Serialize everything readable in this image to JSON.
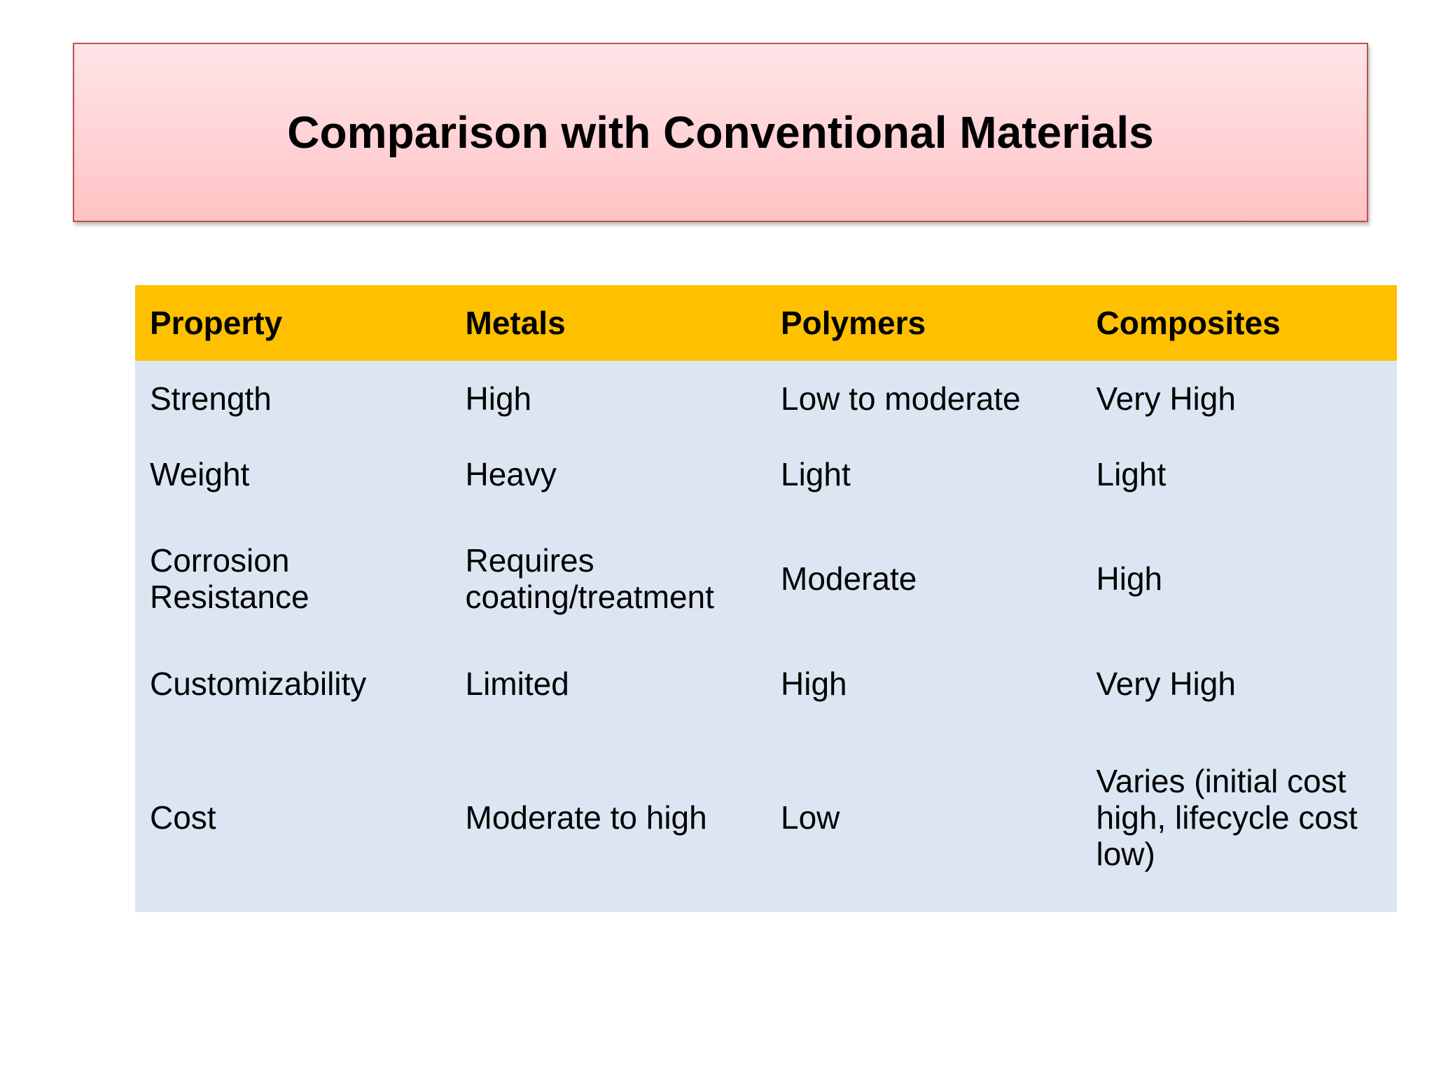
{
  "slide": {
    "title": "Comparison with Conventional Materials"
  },
  "table": {
    "headers": [
      "Property",
      "Metals",
      "Polymers",
      "Composites"
    ],
    "rows": [
      [
        "Strength",
        "High",
        "Low to moderate",
        "Very High"
      ],
      [
        "Weight",
        "Heavy",
        "Light",
        "Light"
      ],
      [
        "Corrosion Resistance",
        "Requires coating/treatment",
        "Moderate",
        "High"
      ],
      [
        "Customizability",
        "Limited",
        "High",
        "Very High"
      ],
      [
        "Cost",
        "Moderate to high",
        "Low",
        "Varies (initial cost high, lifecycle cost low)"
      ]
    ]
  },
  "colors": {
    "title_fill_top": "#ffe3e6",
    "title_fill_bottom": "#ffc2c2",
    "title_border": "#c0504d",
    "header_fill": "#ffc000",
    "body_fill": "#dce6f2"
  }
}
